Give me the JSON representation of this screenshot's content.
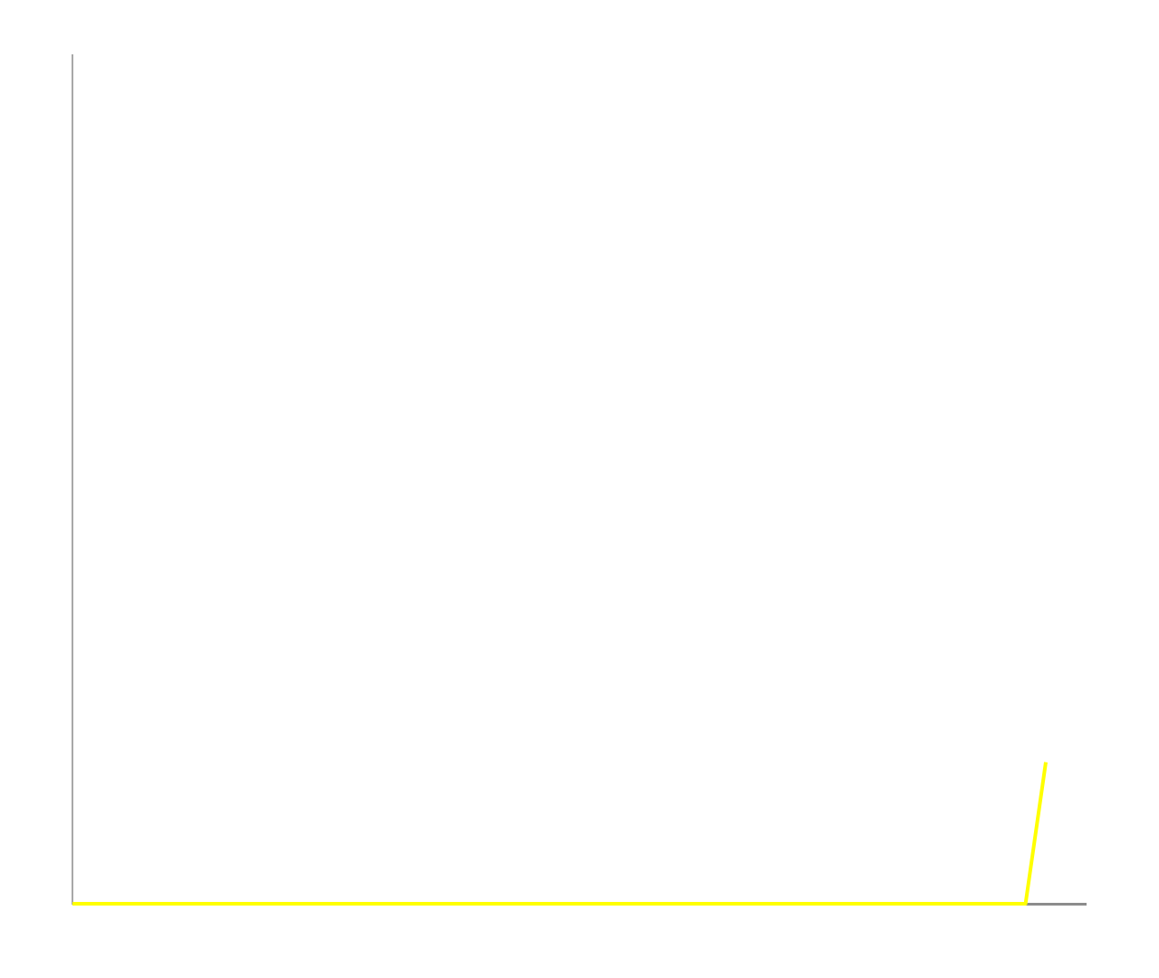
{
  "colors": {
    "background": "#ffffff",
    "axis": "#8c8c8c",
    "series": "#ffff00"
  },
  "chart_data": {
    "type": "line",
    "title": "",
    "xlabel": "",
    "ylabel": "",
    "grid": false,
    "legend": "none",
    "xlim": [
      0,
      48
    ],
    "ylim": [
      0,
      6
    ],
    "series": [
      {
        "color": "#ffff00",
        "x": [
          0,
          47,
          48
        ],
        "y": [
          0,
          0,
          1
        ]
      }
    ]
  }
}
